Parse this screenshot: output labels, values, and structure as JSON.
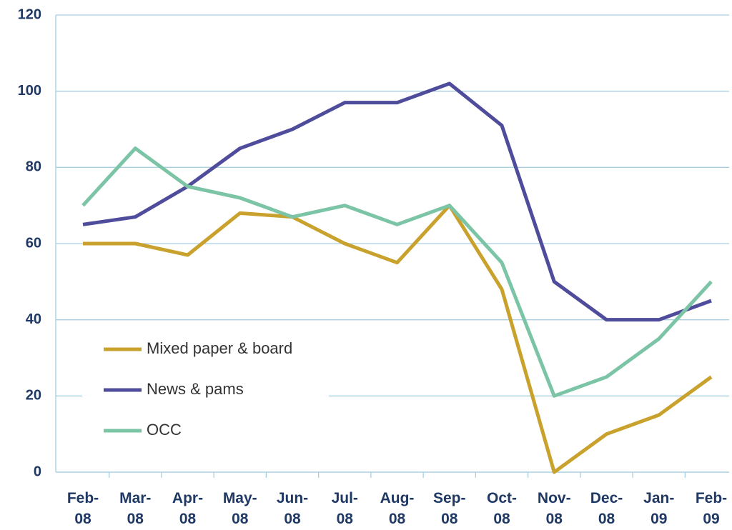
{
  "chart_data": {
    "type": "line",
    "categories": [
      "Feb-\n08",
      "Mar-\n08",
      "Apr-\n08",
      "May-\n08",
      "Jun-\n08",
      "Jul-\n08",
      "Aug-\n08",
      "Sep-\n08",
      "Oct-\n08",
      "Nov-\n08",
      "Dec-\n08",
      "Jan-\n09",
      "Feb-\n09"
    ],
    "series": [
      {
        "name": "Mixed paper & board",
        "color": "#c9a12d",
        "values": [
          60,
          60,
          57,
          68,
          67,
          60,
          55,
          70,
          48,
          0,
          10,
          15,
          25
        ]
      },
      {
        "name": "News & pams",
        "color": "#4f4c9b",
        "values": [
          65,
          67,
          75,
          85,
          90,
          97,
          97,
          102,
          91,
          50,
          40,
          40,
          45
        ]
      },
      {
        "name": "OCC",
        "color": "#7cc4a6",
        "values": [
          70,
          85,
          75,
          72,
          67,
          70,
          65,
          70,
          55,
          20,
          25,
          35,
          50
        ]
      }
    ],
    "ylim": [
      0,
      120
    ],
    "yticks": [
      0,
      20,
      40,
      60,
      80,
      100,
      120
    ],
    "grid": true,
    "legend": "lower left"
  }
}
